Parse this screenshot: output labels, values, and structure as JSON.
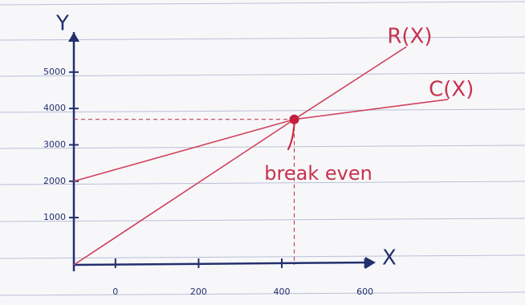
{
  "chart_data": {
    "type": "line",
    "x_label": "X",
    "y_label": "Y",
    "xlim": [
      -100,
      620
    ],
    "ylim": [
      -300,
      6100
    ],
    "xticks": [
      0,
      200,
      400,
      600
    ],
    "yticks": [
      1000,
      2000,
      3000,
      4000,
      5000
    ],
    "series": [
      {
        "name": "R(X)",
        "color": "#d0405c",
        "x": [
          -100,
          430,
          700
        ],
        "values": [
          -300,
          3700,
          5700
        ]
      },
      {
        "name": "C(X)",
        "color": "#d0405c",
        "x": [
          -100,
          430,
          800
        ],
        "values": [
          2000,
          3700,
          4250
        ]
      }
    ],
    "break_even": {
      "label": "break even",
      "x": 430,
      "y": 3700,
      "color": "#c41f3a"
    }
  }
}
